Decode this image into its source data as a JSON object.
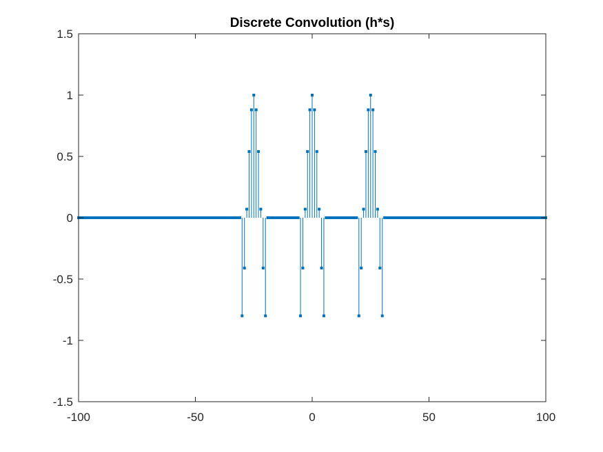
{
  "chart_data": {
    "type": "stem",
    "title": "Discrete Convolution (h*s)",
    "xlabel": "",
    "ylabel": "",
    "xlim": [
      -100,
      100
    ],
    "ylim": [
      -1.5,
      1.5
    ],
    "xticks": [
      -100,
      -50,
      0,
      50,
      100
    ],
    "xtick_labels": [
      "-100",
      "-50",
      "0",
      "50",
      "100"
    ],
    "yticks": [
      -1.5,
      -1,
      -0.5,
      0,
      0.5,
      1,
      1.5
    ],
    "ytick_labels": [
      "-1.5",
      "-1",
      "-0.5",
      "0",
      "0.5",
      "1",
      "1.5"
    ],
    "grid": false,
    "color": "#0072BD",
    "n_range": [
      -100,
      100
    ],
    "nonzero_points": [
      {
        "n": -30,
        "y": -0.8
      },
      {
        "n": -29,
        "y": -0.41
      },
      {
        "n": -28,
        "y": 0.07
      },
      {
        "n": -27,
        "y": 0.54
      },
      {
        "n": -26,
        "y": 0.88
      },
      {
        "n": -25,
        "y": 1.0
      },
      {
        "n": -24,
        "y": 0.88
      },
      {
        "n": -23,
        "y": 0.54
      },
      {
        "n": -22,
        "y": 0.07
      },
      {
        "n": -21,
        "y": -0.41
      },
      {
        "n": -20,
        "y": -0.8
      },
      {
        "n": -5,
        "y": -0.8
      },
      {
        "n": -4,
        "y": -0.41
      },
      {
        "n": -3,
        "y": 0.07
      },
      {
        "n": -2,
        "y": 0.54
      },
      {
        "n": -1,
        "y": 0.88
      },
      {
        "n": 0,
        "y": 1.0
      },
      {
        "n": 1,
        "y": 0.88
      },
      {
        "n": 2,
        "y": 0.54
      },
      {
        "n": 3,
        "y": 0.07
      },
      {
        "n": 4,
        "y": -0.41
      },
      {
        "n": 5,
        "y": -0.8
      },
      {
        "n": 20,
        "y": -0.8
      },
      {
        "n": 21,
        "y": -0.41
      },
      {
        "n": 22,
        "y": 0.07
      },
      {
        "n": 23,
        "y": 0.54
      },
      {
        "n": 24,
        "y": 0.88
      },
      {
        "n": 25,
        "y": 1.0
      },
      {
        "n": 26,
        "y": 0.88
      },
      {
        "n": 27,
        "y": 0.54
      },
      {
        "n": 28,
        "y": 0.07
      },
      {
        "n": 29,
        "y": -0.41
      },
      {
        "n": 30,
        "y": -0.8
      }
    ],
    "default_value": 0
  }
}
